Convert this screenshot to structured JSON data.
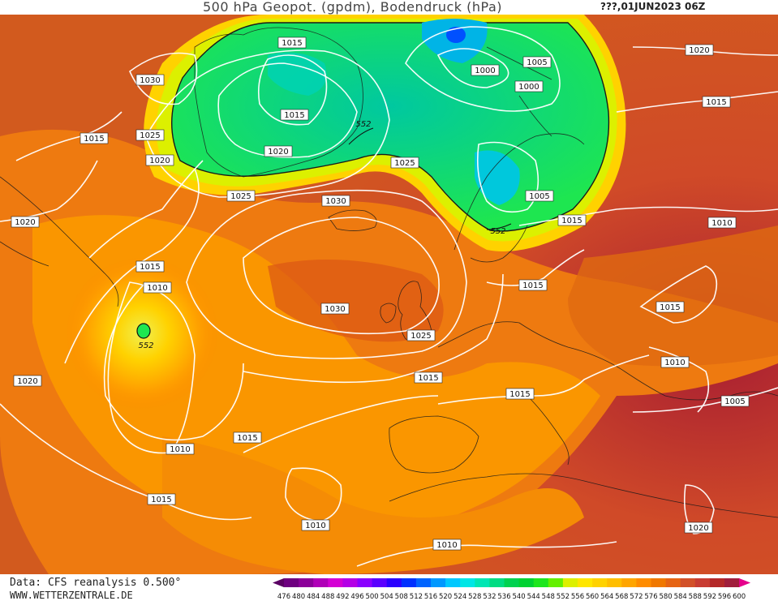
{
  "header": {
    "title": "500 hPa Geopot. (gpdm), Bodendruck (hPa)",
    "date": "???,01JUN2023 06Z"
  },
  "footer": {
    "data_source": "Data: CFS reanalysis 0.500°",
    "website": "WWW.WETTERZENTRALE.DE"
  },
  "legend": {
    "values": [
      476,
      480,
      484,
      488,
      492,
      496,
      500,
      504,
      508,
      512,
      516,
      520,
      524,
      528,
      532,
      536,
      540,
      544,
      548,
      552,
      556,
      560,
      564,
      568,
      572,
      576,
      580,
      584,
      588,
      592,
      596,
      600
    ],
    "colors": [
      "#5a0063",
      "#6e0080",
      "#8c009a",
      "#b000b8",
      "#d400d4",
      "#b400e6",
      "#8a00ff",
      "#5a00ff",
      "#2a00ff",
      "#0030ff",
      "#0064ff",
      "#0098ff",
      "#00c8ff",
      "#00e6e6",
      "#00e6b4",
      "#00dc82",
      "#00d250",
      "#00d232",
      "#1ee61e",
      "#64f000",
      "#dcf000",
      "#ffe600",
      "#ffd200",
      "#ffbe00",
      "#ffa500",
      "#ff8c00",
      "#f07800",
      "#e66414",
      "#d25028",
      "#c83c32",
      "#b42828",
      "#a01e3c",
      "#e6008c"
    ]
  },
  "map": {
    "isobar_labels": [
      {
        "text": "1015"
      },
      {
        "text": "1030"
      },
      {
        "text": "1025"
      },
      {
        "text": "1015"
      },
      {
        "text": "1020"
      },
      {
        "text": "1025"
      },
      {
        "text": "1015"
      },
      {
        "text": "1020"
      },
      {
        "text": "1025"
      },
      {
        "text": "1030"
      },
      {
        "text": "1020"
      },
      {
        "text": "1015"
      },
      {
        "text": "1010"
      },
      {
        "text": "1030"
      },
      {
        "text": "1025"
      },
      {
        "text": "1020"
      },
      {
        "text": "1015"
      },
      {
        "text": "1015"
      },
      {
        "text": "1010"
      },
      {
        "text": "1015"
      },
      {
        "text": "1010"
      },
      {
        "text": "1015"
      },
      {
        "text": "1010"
      },
      {
        "text": "1000"
      },
      {
        "text": "1005"
      },
      {
        "text": "1000"
      },
      {
        "text": "1005"
      },
      {
        "text": "1020"
      },
      {
        "text": "1015"
      },
      {
        "text": "1010"
      },
      {
        "text": "1015"
      },
      {
        "text": "1015"
      },
      {
        "text": "1015"
      },
      {
        "text": "1010"
      },
      {
        "text": "1005"
      },
      {
        "text": "1020"
      }
    ],
    "geopotential_labels": [
      "552",
      "552",
      "552"
    ]
  }
}
